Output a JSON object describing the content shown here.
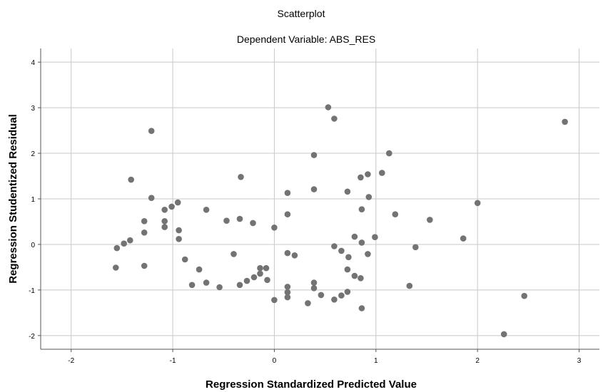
{
  "chart_data": {
    "type": "scatter",
    "title": "Scatterplot",
    "subtitle": "Dependent Variable: ABS_RES",
    "xlabel": "Regression Standardized Predicted Value",
    "ylabel": "Regression Studentized Residual",
    "xlim": [
      -2.3,
      3.2
    ],
    "ylim": [
      -2.3,
      4.3
    ],
    "xticks": [
      -2,
      -1,
      0,
      1,
      2,
      3
    ],
    "yticks": [
      -2,
      -1,
      0,
      1,
      2,
      3,
      4
    ],
    "xtick_labels": [
      "-2",
      "-1",
      "0",
      "1",
      "2",
      "3"
    ],
    "ytick_labels": [
      "-2",
      "-1",
      "0",
      "1",
      "2",
      "3",
      "4"
    ],
    "grid": true,
    "marker_color": "#737373",
    "points": [
      [
        -1.55,
        -0.08
      ],
      [
        -1.56,
        -0.51
      ],
      [
        -1.48,
        0.02
      ],
      [
        -1.42,
        0.09
      ],
      [
        -1.41,
        1.42
      ],
      [
        -1.28,
        0.51
      ],
      [
        -1.28,
        0.26
      ],
      [
        -1.28,
        -0.47
      ],
      [
        -1.21,
        2.49
      ],
      [
        -1.21,
        1.02
      ],
      [
        -1.08,
        0.76
      ],
      [
        -1.08,
        0.51
      ],
      [
        -1.08,
        0.38
      ],
      [
        -1.01,
        0.83
      ],
      [
        -0.95,
        0.92
      ],
      [
        -0.94,
        0.31
      ],
      [
        -0.94,
        0.12
      ],
      [
        -0.88,
        -0.33
      ],
      [
        -0.81,
        -0.89
      ],
      [
        -0.74,
        -0.55
      ],
      [
        -0.67,
        0.76
      ],
      [
        -0.67,
        -0.84
      ],
      [
        -0.54,
        -0.94
      ],
      [
        -0.47,
        0.52
      ],
      [
        -0.4,
        -0.21
      ],
      [
        -0.34,
        0.56
      ],
      [
        -0.33,
        1.48
      ],
      [
        -0.34,
        -0.89
      ],
      [
        -0.27,
        -0.8
      ],
      [
        -0.21,
        0.47
      ],
      [
        -0.2,
        -0.72
      ],
      [
        -0.14,
        -0.64
      ],
      [
        -0.14,
        -0.52
      ],
      [
        -0.08,
        -0.52
      ],
      [
        -0.07,
        -0.78
      ],
      [
        0.0,
        0.37
      ],
      [
        0.0,
        -1.22
      ],
      [
        0.13,
        1.13
      ],
      [
        0.13,
        0.66
      ],
      [
        0.13,
        -0.19
      ],
      [
        0.13,
        -0.93
      ],
      [
        0.13,
        -1.05
      ],
      [
        0.13,
        -1.16
      ],
      [
        0.2,
        -0.24
      ],
      [
        0.33,
        -1.29
      ],
      [
        0.39,
        1.96
      ],
      [
        0.39,
        1.21
      ],
      [
        0.39,
        -0.84
      ],
      [
        0.39,
        -0.96
      ],
      [
        0.46,
        -1.11
      ],
      [
        0.53,
        3.01
      ],
      [
        0.59,
        2.76
      ],
      [
        0.59,
        -0.04
      ],
      [
        0.59,
        -1.21
      ],
      [
        0.66,
        -0.14
      ],
      [
        0.66,
        -1.12
      ],
      [
        0.72,
        1.16
      ],
      [
        0.73,
        -0.28
      ],
      [
        0.72,
        -0.55
      ],
      [
        0.72,
        -1.04
      ],
      [
        0.79,
        0.17
      ],
      [
        0.79,
        -0.69
      ],
      [
        0.85,
        1.47
      ],
      [
        0.86,
        0.77
      ],
      [
        0.86,
        0.04
      ],
      [
        0.85,
        -0.74
      ],
      [
        0.86,
        -1.4
      ],
      [
        0.92,
        1.54
      ],
      [
        0.92,
        -0.21
      ],
      [
        0.93,
        1.04
      ],
      [
        0.99,
        0.16
      ],
      [
        1.06,
        1.57
      ],
      [
        1.13,
        2.0
      ],
      [
        1.19,
        0.66
      ],
      [
        1.33,
        -0.91
      ],
      [
        1.39,
        -0.06
      ],
      [
        1.53,
        0.54
      ],
      [
        1.86,
        0.13
      ],
      [
        2.0,
        0.91
      ],
      [
        2.26,
        -1.97
      ],
      [
        2.46,
        -1.13
      ],
      [
        2.86,
        2.69
      ]
    ]
  }
}
